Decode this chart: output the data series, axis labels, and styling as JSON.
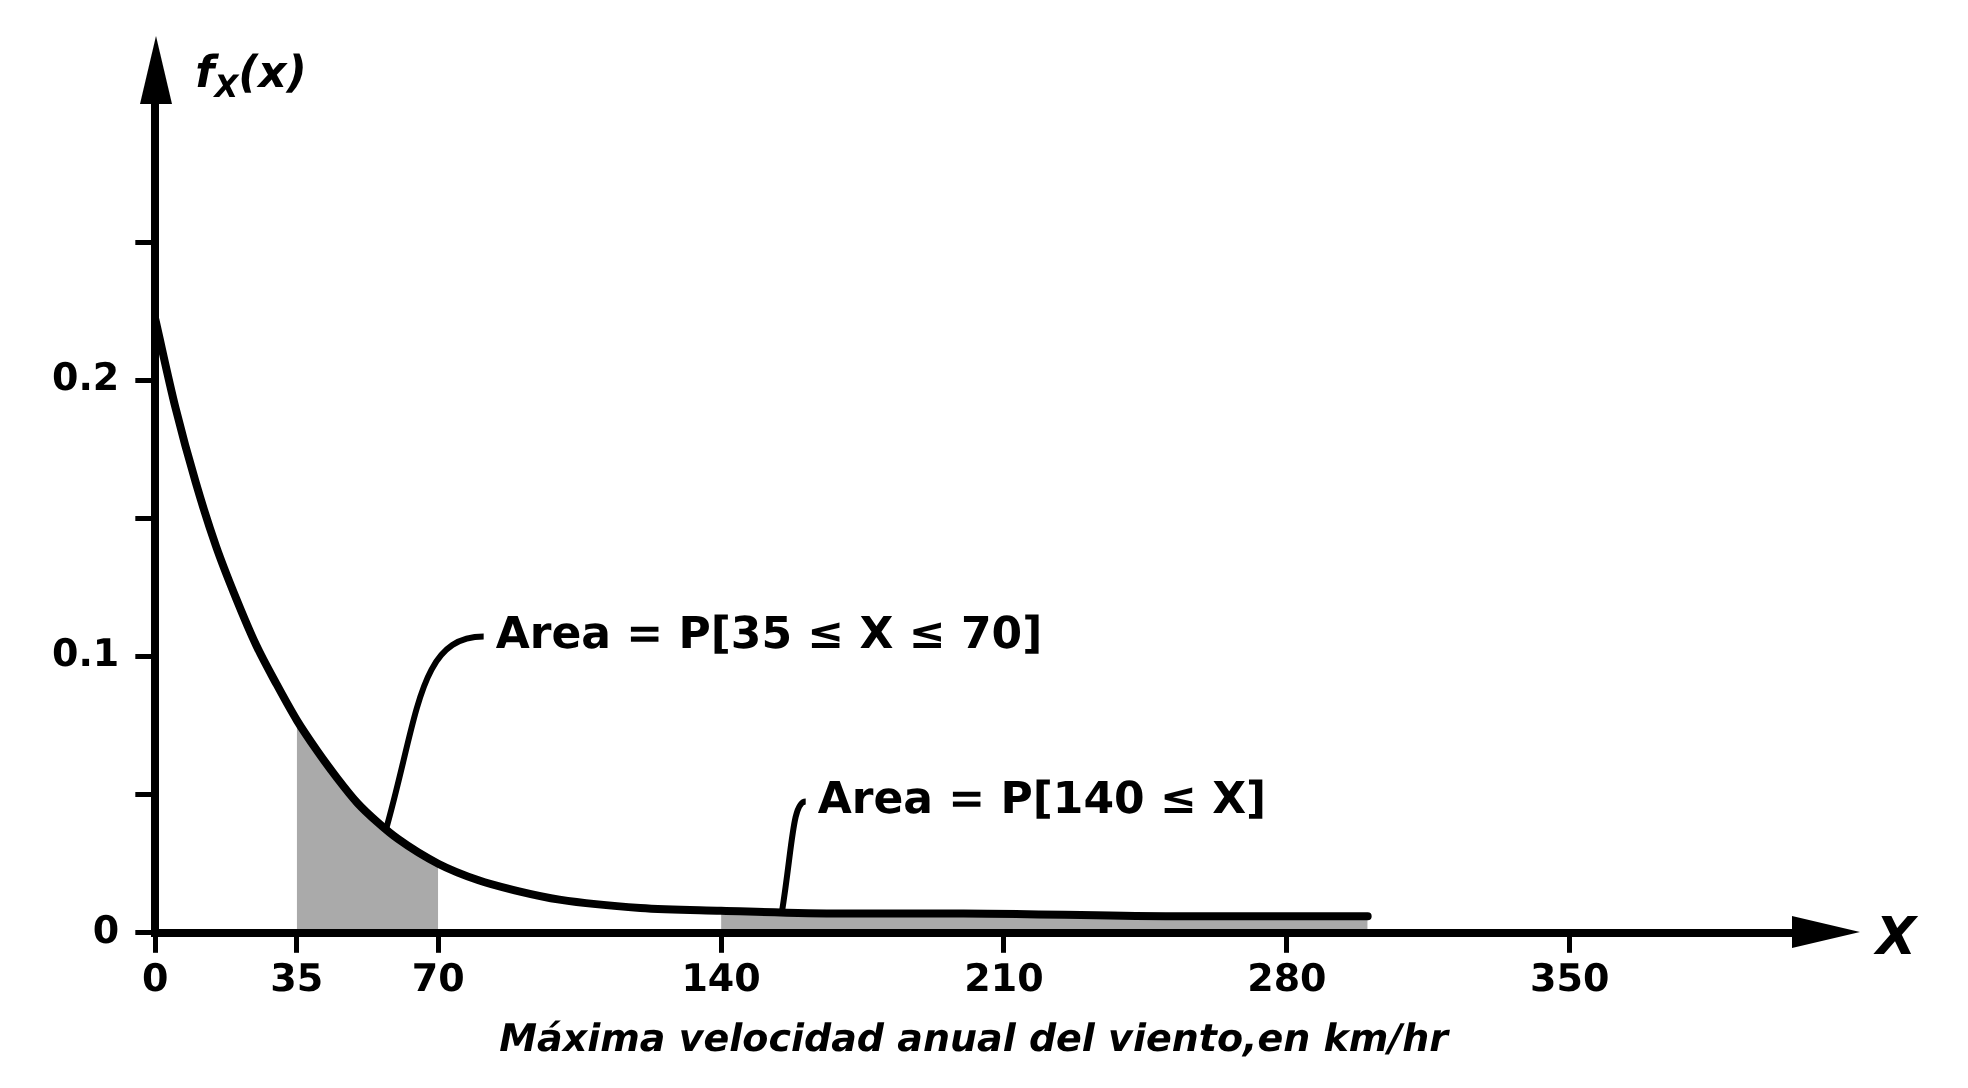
{
  "chart_data": {
    "type": "line",
    "xlabel": "Máxima velocidad anual del viento,en km/hr",
    "ylabel": "f$_{X}$(x)",
    "xlim": [
      0,
      405
    ],
    "ylim": [
      0,
      0.3
    ],
    "xticks": [
      0,
      35,
      70,
      140,
      210,
      280,
      350
    ],
    "yticks": [
      0,
      {
        "value": 0.05,
        "label": null
      },
      0.1,
      {
        "value": 0.15,
        "label": null
      },
      0.2,
      {
        "value": 0.25,
        "label": null
      }
    ],
    "grid": false,
    "legend": false,
    "marker": "none",
    "line_style": "solid",
    "series": [
      {
        "type": "line",
        "color": "#000000",
        "x": [
          0,
          5,
          10,
          15,
          20,
          25,
          30,
          35,
          40,
          45,
          50,
          55,
          60,
          70,
          80,
          90,
          100,
          120,
          140,
          170,
          200,
          250,
          300
        ],
        "values": [
          0.222,
          0.19,
          0.163,
          0.14,
          0.121,
          0.104,
          0.09,
          0.077,
          0.066,
          0.056,
          0.047,
          0.04,
          0.034,
          0.025,
          0.019,
          0.015,
          0.012,
          0.009,
          0.008,
          0.007,
          0.007,
          0.006,
          0.006
        ]
      },
      {
        "type": "area",
        "color": "#000000",
        "x": [
          35,
          40,
          45,
          50,
          55,
          60,
          70
        ],
        "values": [
          0.077,
          0.066,
          0.056,
          0.047,
          0.04,
          0.034,
          0.025
        ]
      },
      {
        "type": "area",
        "color": "#000000",
        "x": [
          140,
          170,
          200,
          250,
          300
        ],
        "values": [
          0.008,
          0.007,
          0.007,
          0.006,
          0.006
        ]
      }
    ],
    "annotations": [
      {
        "text": "Area = P[35 ≤ X ≤ 70]",
        "x": 57,
        "y": 0.037
      },
      {
        "text": "Area = P[140 ≤ X]",
        "x": 155,
        "y": 0.007
      },
      "X"
    ]
  }
}
